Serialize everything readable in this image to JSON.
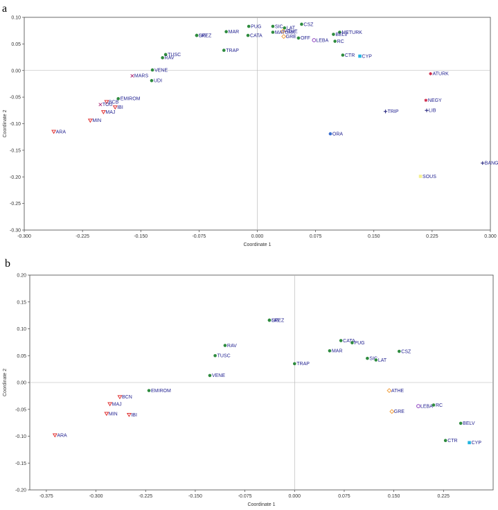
{
  "panels": [
    {
      "letter": "a"
    },
    {
      "letter": "b"
    }
  ],
  "series_styles": {
    "green": {
      "color": "#2e8b3e",
      "marker": "dot"
    },
    "orange": {
      "color": "#f0a040",
      "marker": "diamond"
    },
    "cyan": {
      "color": "#22b5e0",
      "marker": "square"
    },
    "purple": {
      "color": "#8a3fbf",
      "marker": "circle"
    },
    "red": {
      "color": "#e03030",
      "marker": "triangle-down"
    },
    "magenta": {
      "color": "#b0307a",
      "marker": "x"
    },
    "crimson": {
      "color": "#cc2040",
      "marker": "star"
    },
    "navy": {
      "color": "#2a2a80",
      "marker": "plus"
    },
    "yellow": {
      "color": "#f5f090",
      "marker": "square"
    },
    "blue": {
      "color": "#3a6fd0",
      "marker": "dot"
    }
  },
  "chart_data": [
    {
      "type": "scatter",
      "title": "",
      "xlabel": "Coordinate 1",
      "ylabel": "Coordinate 2",
      "xlim": [
        -0.3,
        0.3
      ],
      "ylim": [
        -0.3,
        0.1
      ],
      "xticks": [
        "-0.300",
        "-0.225",
        "-0.150",
        "-0.075",
        "0.000",
        "0.075",
        "0.150",
        "0.225",
        "0.300"
      ],
      "xtick_values": [
        -0.3,
        -0.225,
        -0.15,
        -0.075,
        0,
        0.075,
        0.15,
        0.225,
        0.3
      ],
      "yticks": [
        "0.10",
        "0.05",
        "0.00",
        "-0.05",
        "-0.10",
        "-0.15",
        "-0.20",
        "-0.25",
        "-0.30"
      ],
      "ytick_values": [
        0.1,
        0.05,
        0,
        -0.05,
        -0.1,
        -0.15,
        -0.2,
        -0.25,
        -0.3
      ],
      "points": [
        {
          "label": "PUG",
          "x": -0.011,
          "y": 0.083,
          "style": "green"
        },
        {
          "label": "SIC",
          "x": 0.02,
          "y": 0.083,
          "style": "green"
        },
        {
          "label": "CSZ",
          "x": 0.057,
          "y": 0.087,
          "style": "green"
        },
        {
          "label": "LAT",
          "x": 0.035,
          "y": 0.08,
          "style": "green"
        },
        {
          "label": "ATHE",
          "x": 0.033,
          "y": 0.074,
          "style": "orange"
        },
        {
          "label": "MAR",
          "x": -0.04,
          "y": 0.073,
          "style": "green"
        },
        {
          "label": "MATURK",
          "x": 0.02,
          "y": 0.072,
          "style": "green"
        },
        {
          "label": "METURK",
          "x": 0.106,
          "y": 0.072,
          "style": "green"
        },
        {
          "label": "BELV",
          "x": 0.098,
          "y": 0.068,
          "style": "green"
        },
        {
          "label": "SPEZ",
          "x": -0.078,
          "y": 0.066,
          "style": "green"
        },
        {
          "label": "LIG",
          "x": -0.078,
          "y": 0.066,
          "style": "green"
        },
        {
          "label": "CATA",
          "x": -0.012,
          "y": 0.066,
          "style": "green"
        },
        {
          "label": "GRE",
          "x": 0.034,
          "y": 0.064,
          "style": "orange"
        },
        {
          "label": "OFF",
          "x": 0.053,
          "y": 0.061,
          "style": "green"
        },
        {
          "label": "LEBA",
          "x": 0.073,
          "y": 0.057,
          "style": "purple"
        },
        {
          "label": "RC",
          "x": 0.1,
          "y": 0.055,
          "style": "green"
        },
        {
          "label": "TRAP",
          "x": -0.043,
          "y": 0.038,
          "style": "green"
        },
        {
          "label": "TUSC",
          "x": -0.118,
          "y": 0.03,
          "style": "green"
        },
        {
          "label": "RAV",
          "x": -0.122,
          "y": 0.024,
          "style": "green"
        },
        {
          "label": "CTR",
          "x": 0.11,
          "y": 0.029,
          "style": "green"
        },
        {
          "label": "CYP",
          "x": 0.132,
          "y": 0.027,
          "style": "cyan"
        },
        {
          "label": "VENE",
          "x": -0.135,
          "y": 0.001,
          "style": "green"
        },
        {
          "label": "MARS",
          "x": -0.161,
          "y": -0.01,
          "style": "magenta"
        },
        {
          "label": "UDI",
          "x": -0.136,
          "y": -0.019,
          "style": "green"
        },
        {
          "label": "ATURK",
          "x": 0.223,
          "y": -0.006,
          "style": "crimson"
        },
        {
          "label": "BCB",
          "x": -0.194,
          "y": -0.059,
          "style": "red"
        },
        {
          "label": "EMIROM",
          "x": -0.179,
          "y": -0.053,
          "style": "green"
        },
        {
          "label": "TOU",
          "x": -0.202,
          "y": -0.064,
          "style": "magenta"
        },
        {
          "label": "NEGY",
          "x": 0.217,
          "y": -0.056,
          "style": "crimson"
        },
        {
          "label": "IBI",
          "x": -0.183,
          "y": -0.069,
          "style": "red"
        },
        {
          "label": "MAJ",
          "x": -0.198,
          "y": -0.078,
          "style": "red"
        },
        {
          "label": "LIB",
          "x": 0.218,
          "y": -0.075,
          "style": "navy"
        },
        {
          "label": "TRIP",
          "x": 0.165,
          "y": -0.077,
          "style": "navy"
        },
        {
          "label": "MIN",
          "x": -0.215,
          "y": -0.094,
          "style": "red"
        },
        {
          "label": "ARA",
          "x": -0.262,
          "y": -0.115,
          "style": "red"
        },
        {
          "label": "ORA",
          "x": 0.094,
          "y": -0.119,
          "style": "blue"
        },
        {
          "label": "BANG",
          "x": 0.29,
          "y": -0.174,
          "style": "navy"
        },
        {
          "label": "SOUS",
          "x": 0.21,
          "y": -0.199,
          "style": "yellow"
        }
      ]
    },
    {
      "type": "scatter",
      "title": "",
      "xlabel": "Coordinate 1",
      "ylabel": "Coordinate 2",
      "xlim": [
        -0.4,
        0.3
      ],
      "ylim": [
        -0.2,
        0.2
      ],
      "xticks": [
        "-0.375",
        "-0.300",
        "-0.225",
        "-0.150",
        "-0.075",
        "0.000",
        "0.075",
        "0.150",
        "0.225"
      ],
      "xtick_values": [
        -0.375,
        -0.3,
        -0.225,
        -0.15,
        -0.075,
        0,
        0.075,
        0.15,
        0.225
      ],
      "yticks": [
        "0.20",
        "0.15",
        "0.10",
        "0.05",
        "0.00",
        "-0.05",
        "-0.10",
        "-0.15",
        "-0.20"
      ],
      "ytick_values": [
        0.2,
        0.15,
        0.1,
        0.05,
        0,
        -0.05,
        -0.1,
        -0.15,
        -0.2
      ],
      "points": [
        {
          "label": "SPEZ",
          "x": -0.038,
          "y": 0.116,
          "style": "green"
        },
        {
          "label": "LIG",
          "x": -0.038,
          "y": 0.116,
          "style": "green"
        },
        {
          "label": "CATA",
          "x": 0.07,
          "y": 0.078,
          "style": "green"
        },
        {
          "label": "PUG",
          "x": 0.087,
          "y": 0.074,
          "style": "green"
        },
        {
          "label": "RAV",
          "x": -0.105,
          "y": 0.069,
          "style": "green"
        },
        {
          "label": "MAR",
          "x": 0.053,
          "y": 0.059,
          "style": "green"
        },
        {
          "label": "CSZ",
          "x": 0.158,
          "y": 0.058,
          "style": "green"
        },
        {
          "label": "TUSC",
          "x": -0.12,
          "y": 0.05,
          "style": "green"
        },
        {
          "label": "SIC",
          "x": 0.11,
          "y": 0.045,
          "style": "green"
        },
        {
          "label": "LAT",
          "x": 0.123,
          "y": 0.042,
          "style": "green"
        },
        {
          "label": "TRAP",
          "x": 0.0,
          "y": 0.035,
          "style": "green"
        },
        {
          "label": "VENE",
          "x": -0.128,
          "y": 0.013,
          "style": "green"
        },
        {
          "label": "EMIROM",
          "x": -0.22,
          "y": -0.015,
          "style": "green"
        },
        {
          "label": "ATHE",
          "x": 0.143,
          "y": -0.015,
          "style": "orange"
        },
        {
          "label": "BCN",
          "x": -0.264,
          "y": -0.027,
          "style": "red"
        },
        {
          "label": "MAJ",
          "x": -0.279,
          "y": -0.04,
          "style": "red"
        },
        {
          "label": "LEBA",
          "x": 0.187,
          "y": -0.044,
          "style": "purple"
        },
        {
          "label": "RC",
          "x": 0.21,
          "y": -0.042,
          "style": "green"
        },
        {
          "label": "GRE",
          "x": 0.147,
          "y": -0.054,
          "style": "orange"
        },
        {
          "label": "MIN",
          "x": -0.284,
          "y": -0.058,
          "style": "red"
        },
        {
          "label": "IBI",
          "x": -0.25,
          "y": -0.06,
          "style": "red"
        },
        {
          "label": "BELV",
          "x": 0.251,
          "y": -0.076,
          "style": "green"
        },
        {
          "label": "ARA",
          "x": -0.362,
          "y": -0.098,
          "style": "red"
        },
        {
          "label": "CTR",
          "x": 0.228,
          "y": -0.108,
          "style": "green"
        },
        {
          "label": "CYP",
          "x": 0.264,
          "y": -0.112,
          "style": "cyan"
        }
      ]
    }
  ]
}
